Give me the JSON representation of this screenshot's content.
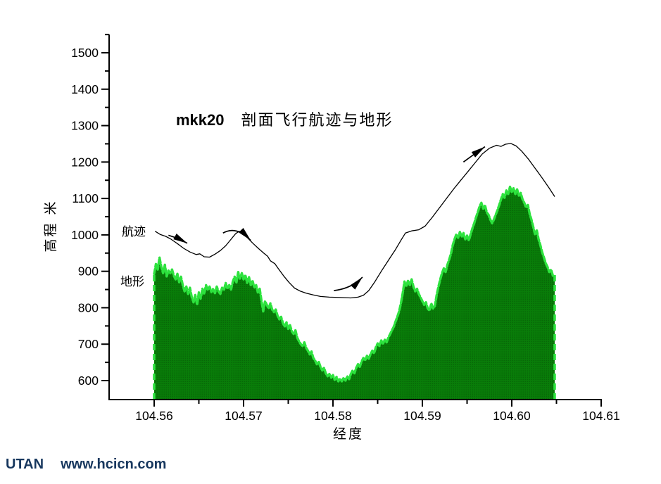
{
  "title": {
    "series_id": "mkk20",
    "text": "剖面飞行航迹与地形"
  },
  "labels": {
    "track": "航迹",
    "terrain": "地形"
  },
  "axes": {
    "x": {
      "title": "经度",
      "major_ticks": [
        104.56,
        104.57,
        104.58,
        104.59,
        104.6,
        104.61
      ],
      "tick_labels": [
        "104.56",
        "104.57",
        "104.58",
        "104.59",
        "104.60",
        "104.61"
      ],
      "minor_ticks": [
        104.565,
        104.575,
        104.585,
        104.595,
        104.605
      ]
    },
    "y": {
      "title": "高程 米",
      "major_ticks": [
        600,
        700,
        800,
        900,
        1000,
        1100,
        1200,
        1300,
        1400,
        1500
      ],
      "tick_labels": [
        "600",
        "700",
        "800",
        "900",
        "1000",
        "1100",
        "1200",
        "1300",
        "1400",
        "1500"
      ],
      "minor_ticks": [
        650,
        750,
        850,
        950,
        1050,
        1150,
        1250,
        1350,
        1450,
        1550
      ]
    }
  },
  "watermark": {
    "brand": "UTAN",
    "site": "www.hcicn.com",
    "color": "#17375e"
  },
  "colors": {
    "axis": "#000000",
    "track_line": "#000000",
    "terrain_fill": "#097d09",
    "terrain_fill_dark": "#076807",
    "terrain_edge": "#2de23e",
    "text": "#000000"
  },
  "chart_data": {
    "type": "line",
    "title": "mkk20 剖面飞行航迹与地形",
    "xlabel": "经度",
    "ylabel": "高程 米",
    "xlim": [
      104.555,
      104.61
    ],
    "ylim": [
      548,
      1550
    ],
    "grid": false,
    "series": [
      {
        "name": "航迹",
        "style": "line",
        "points": [
          [
            104.5601,
            1010
          ],
          [
            104.5607,
            1001
          ],
          [
            104.5613,
            996
          ],
          [
            104.5619,
            988
          ],
          [
            104.5626,
            976
          ],
          [
            104.5633,
            963
          ],
          [
            104.564,
            953
          ],
          [
            104.5647,
            946
          ],
          [
            104.5651,
            948
          ],
          [
            104.5656,
            940
          ],
          [
            104.5662,
            939
          ],
          [
            104.5668,
            947
          ],
          [
            104.5674,
            957
          ],
          [
            104.568,
            970
          ],
          [
            104.5686,
            988
          ],
          [
            104.5691,
            1003
          ],
          [
            104.5695,
            1010
          ],
          [
            104.5699,
            1005
          ],
          [
            104.5704,
            993
          ],
          [
            104.571,
            978
          ],
          [
            104.5717,
            962
          ],
          [
            104.5723,
            949
          ],
          [
            104.5727,
            941
          ],
          [
            104.573,
            929
          ],
          [
            104.5735,
            921
          ],
          [
            104.5739,
            907
          ],
          [
            104.5745,
            887
          ],
          [
            104.5751,
            869
          ],
          [
            104.5757,
            854
          ],
          [
            104.5763,
            846
          ],
          [
            104.577,
            840
          ],
          [
            104.5778,
            835
          ],
          [
            104.5786,
            831
          ],
          [
            104.5796,
            829
          ],
          [
            104.5808,
            828
          ],
          [
            104.582,
            827
          ],
          [
            104.5828,
            829
          ],
          [
            104.5834,
            834
          ],
          [
            104.584,
            847
          ],
          [
            104.5847,
            872
          ],
          [
            104.5854,
            900
          ],
          [
            104.5862,
            930
          ],
          [
            104.587,
            960
          ],
          [
            104.5876,
            985
          ],
          [
            104.5881,
            1005
          ],
          [
            104.5888,
            1011
          ],
          [
            104.5896,
            1014
          ],
          [
            104.5903,
            1024
          ],
          [
            104.5911,
            1048
          ],
          [
            104.5919,
            1074
          ],
          [
            104.5927,
            1100
          ],
          [
            104.5935,
            1126
          ],
          [
            104.5943,
            1150
          ],
          [
            104.5951,
            1174
          ],
          [
            104.5959,
            1198
          ],
          [
            104.5967,
            1222
          ],
          [
            104.5975,
            1238
          ],
          [
            104.5983,
            1246
          ],
          [
            104.5988,
            1243
          ],
          [
            104.5993,
            1249
          ],
          [
            104.5999,
            1251
          ],
          [
            104.6005,
            1244
          ],
          [
            104.6011,
            1230
          ],
          [
            104.6019,
            1207
          ],
          [
            104.6027,
            1180
          ],
          [
            104.6035,
            1153
          ],
          [
            104.6042,
            1128
          ],
          [
            104.6048,
            1105
          ]
        ]
      },
      {
        "name": "地形",
        "style": "area",
        "x_start": 104.56,
        "x_step": 0.0002,
        "values": [
          893,
          920,
          905,
          938,
          912,
          895,
          918,
          886,
          902,
          895,
          905,
          888,
          878,
          893,
          870,
          885,
          862,
          845,
          858,
          838,
          855,
          830,
          815,
          835,
          808,
          842,
          825,
          852,
          838,
          862,
          848,
          858,
          843,
          852,
          840,
          858,
          845,
          838,
          855,
          848,
          868,
          852,
          862,
          850,
          872,
          885,
          868,
          898,
          880,
          895,
          878,
          890,
          868,
          885,
          862,
          875,
          855,
          862,
          842,
          852,
          820,
          790,
          818,
          808,
          798,
          812,
          795,
          788,
          795,
          778,
          768,
          775,
          758,
          748,
          760,
          742,
          752,
          735,
          728,
          738,
          718,
          708,
          700,
          695,
          705,
          690,
          682,
          672,
          680,
          662,
          655,
          645,
          652,
          638,
          628,
          635,
          620,
          612,
          618,
          608,
          615,
          602,
          610,
          598,
          605,
          598,
          608,
          600,
          612,
          604,
          618,
          628,
          620,
          635,
          645,
          638,
          652,
          662,
          655,
          668,
          660,
          672,
          682,
          675,
          692,
          702,
          695,
          710,
          702,
          712,
          705,
          718,
          728,
          738,
          748,
          762,
          775,
          790,
          812,
          840,
          872,
          858,
          875,
          862,
          878,
          858,
          845,
          852,
          838,
          828,
          818,
          808,
          815,
          798,
          792,
          812,
          798,
          805,
          835,
          858,
          878,
          895,
          908,
          898,
          918,
          932,
          948,
          972,
          988,
          1002,
          992,
          1008,
          995,
          1005,
          988,
          998,
          985,
          1002,
          1018,
          1032,
          1048,
          1062,
          1078,
          1088,
          1072,
          1082,
          1062,
          1055,
          1042,
          1032,
          1042,
          1055,
          1068,
          1082,
          1098,
          1112,
          1102,
          1122,
          1112,
          1132,
          1118,
          1128,
          1112,
          1125,
          1108,
          1115,
          1098,
          1088,
          1075,
          1082,
          1058,
          1042,
          1022,
          1002,
          1012,
          988,
          972,
          952,
          938,
          922,
          912,
          898,
          905,
          888,
          890
        ]
      }
    ],
    "annotations": {
      "arrows": [
        {
          "from": [
            104.5616,
            999
          ],
          "ctrl": [
            104.5626,
            992
          ],
          "to": [
            104.5637,
            977
          ]
        },
        {
          "from": [
            104.5677,
            1005
          ],
          "ctrl": [
            104.5692,
            1026
          ],
          "to": [
            104.5708,
            985
          ]
        },
        {
          "from": [
            104.5801,
            847
          ],
          "ctrl": [
            104.5821,
            853
          ],
          "to": [
            104.5833,
            884
          ]
        },
        {
          "from": [
            104.5946,
            1200
          ],
          "ctrl": [
            104.5957,
            1220
          ],
          "to": [
            104.597,
            1242
          ]
        }
      ]
    }
  }
}
